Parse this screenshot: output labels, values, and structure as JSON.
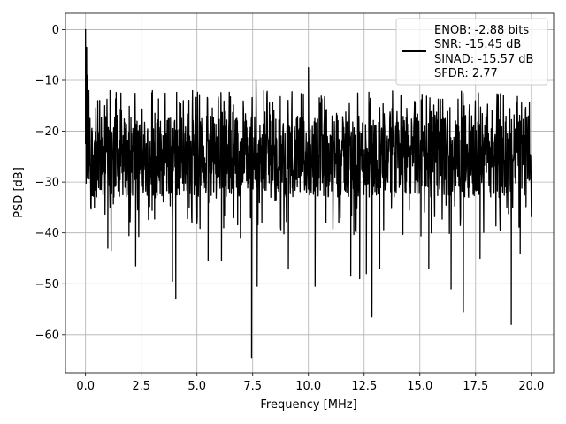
{
  "chart_data": {
    "type": "line",
    "xlabel": "Frequency [MHz]",
    "ylabel": "PSD [dB]",
    "xlim": [
      -0.9,
      21.0
    ],
    "ylim": [
      -67.5,
      3.2
    ],
    "xticks": [
      0.0,
      2.5,
      5.0,
      7.5,
      10.0,
      12.5,
      15.0,
      17.5,
      20.0
    ],
    "xtick_labels": [
      "0.0",
      "2.5",
      "5.0",
      "7.5",
      "10.0",
      "12.5",
      "15.0",
      "17.5",
      "20.0"
    ],
    "yticks": [
      0,
      -10,
      -20,
      -30,
      -40,
      -50,
      -60
    ],
    "ytick_labels": [
      "0",
      "−10",
      "−20",
      "−30",
      "−40",
      "−50",
      "−60"
    ],
    "grid": true,
    "legend_position": "top-right",
    "line_color": "#000000",
    "series": [
      {
        "legend_lines": [
          "ENOB: -2.88 bits",
          "SNR: -15.45 dB",
          "SINAD: -15.57 dB",
          "SFDR: 2.77"
        ],
        "noise_band_db": [
          -33,
          -17
        ],
        "notable_points": [
          {
            "x": 0.0,
            "y": 0.0
          },
          {
            "x": 0.02,
            "y": -7.5
          },
          {
            "x": 0.05,
            "y": -3.5
          },
          {
            "x": 0.1,
            "y": -9.0
          },
          {
            "x": 0.15,
            "y": -12.0
          },
          {
            "x": 0.2,
            "y": -17.5
          },
          {
            "x": 0.3,
            "y": -20.0
          },
          {
            "x": 0.4,
            "y": -35.0
          },
          {
            "x": 0.55,
            "y": -14.0
          },
          {
            "x": 1.0,
            "y": -43.0
          },
          {
            "x": 1.1,
            "y": -12.0
          },
          {
            "x": 1.15,
            "y": -43.5
          },
          {
            "x": 2.25,
            "y": -46.5
          },
          {
            "x": 3.0,
            "y": -12.0
          },
          {
            "x": 3.9,
            "y": -49.5
          },
          {
            "x": 4.05,
            "y": -53.0
          },
          {
            "x": 4.8,
            "y": -12.0
          },
          {
            "x": 5.5,
            "y": -45.5
          },
          {
            "x": 6.1,
            "y": -45.5
          },
          {
            "x": 7.45,
            "y": -64.5
          },
          {
            "x": 7.7,
            "y": -50.5
          },
          {
            "x": 7.65,
            "y": -10.0
          },
          {
            "x": 8.0,
            "y": -12.0
          },
          {
            "x": 9.1,
            "y": -47.0
          },
          {
            "x": 10.0,
            "y": -7.5
          },
          {
            "x": 10.3,
            "y": -50.5
          },
          {
            "x": 11.9,
            "y": -48.5
          },
          {
            "x": 12.3,
            "y": -49.0
          },
          {
            "x": 12.6,
            "y": -48.0
          },
          {
            "x": 12.85,
            "y": -56.5
          },
          {
            "x": 13.2,
            "y": -47.0
          },
          {
            "x": 15.4,
            "y": -47.0
          },
          {
            "x": 16.4,
            "y": -51.0
          },
          {
            "x": 16.95,
            "y": -55.5
          },
          {
            "x": 17.7,
            "y": -45.0
          },
          {
            "x": 19.1,
            "y": -58.0
          },
          {
            "x": 19.5,
            "y": -44.0
          },
          {
            "x": 20.0,
            "y": -28.0
          }
        ]
      }
    ]
  }
}
